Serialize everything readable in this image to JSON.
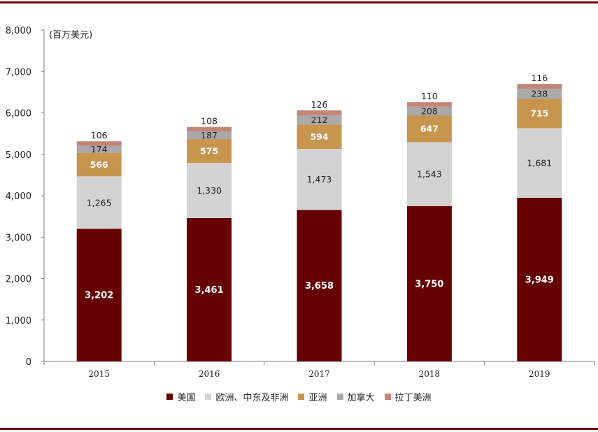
{
  "chart_data": {
    "type": "bar",
    "stacked": true,
    "unit_label": "(百万美元)",
    "categories": [
      "2015",
      "2016",
      "2017",
      "2018",
      "2019"
    ],
    "ylim": [
      0,
      8000
    ],
    "yticks": [
      "0",
      "1,000",
      "2,000",
      "3,000",
      "4,000",
      "5,000",
      "6,000",
      "7,000",
      "8,000"
    ],
    "grid": false,
    "legend_position": "bottom",
    "series": [
      {
        "name": "美国",
        "color": "#660000",
        "values": [
          3202,
          3461,
          3658,
          3750,
          3949
        ],
        "labels": [
          "3,202",
          "3,461",
          "3,658",
          "3,750",
          "3,949"
        ]
      },
      {
        "name": "欧洲、中东及非洲",
        "color": "#d3d3d3",
        "values": [
          1265,
          1330,
          1473,
          1543,
          1681
        ],
        "labels": [
          "1,265",
          "1,330",
          "1,473",
          "1,543",
          "1,681"
        ]
      },
      {
        "name": "亚洲",
        "color": "#c8954f",
        "values": [
          566,
          575,
          594,
          647,
          715
        ],
        "labels": [
          "566",
          "575",
          "594",
          "647",
          "715"
        ]
      },
      {
        "name": "加拿大",
        "color": "#a9a9a9",
        "values": [
          174,
          187,
          212,
          208,
          238
        ],
        "labels": [
          "174",
          "187",
          "212",
          "208",
          "238"
        ]
      },
      {
        "name": "拉丁美洲",
        "color": "#c48578",
        "values": [
          106,
          108,
          126,
          110,
          116
        ],
        "labels": [
          "106",
          "108",
          "126",
          "110",
          "116"
        ]
      }
    ]
  }
}
